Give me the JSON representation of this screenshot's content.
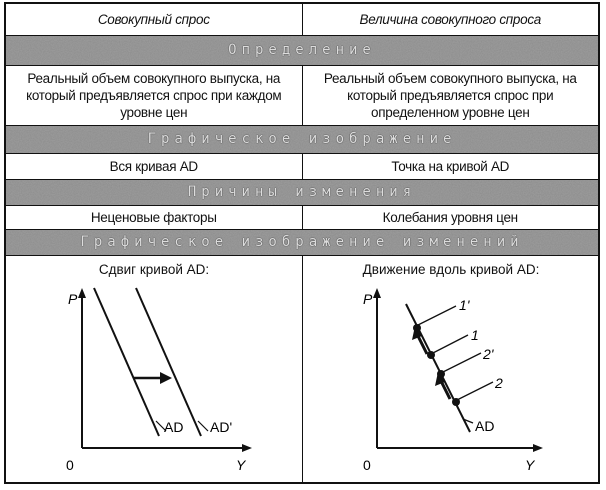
{
  "header": {
    "left": "Совокупный спрос",
    "right": "Величина совокупного спроса"
  },
  "sections": [
    {
      "title": "Определение",
      "left": "Реальный объем совокупного выпуска, на который предъявляется спрос при каждом уровне цен",
      "right": "Реальный объем совокупного выпуска, на который предъявляется спрос при определенном уровне цен"
    },
    {
      "title": "Графическое изображение",
      "left": "Вся кривая AD",
      "right": "Точка на кривой AD"
    },
    {
      "title": "Причины изменения",
      "left": "Неценовые факторы",
      "right": "Колебания уровня цен"
    },
    {
      "title": "Графическое изображение изменений",
      "left": "Сдвиг кривой AD:",
      "right": "Движение вдоль кривой AD:"
    }
  ],
  "graph_left": {
    "y_axis": "P",
    "x_axis": "Y",
    "origin": "0",
    "curve1": "AD",
    "curve2": "AD'"
  },
  "graph_right": {
    "y_axis": "P",
    "x_axis": "Y",
    "origin": "0",
    "curve": "AD",
    "points": [
      "1'",
      "1",
      "2'",
      "2"
    ]
  },
  "colors": {
    "band": "#555555",
    "ink": "#111111"
  }
}
